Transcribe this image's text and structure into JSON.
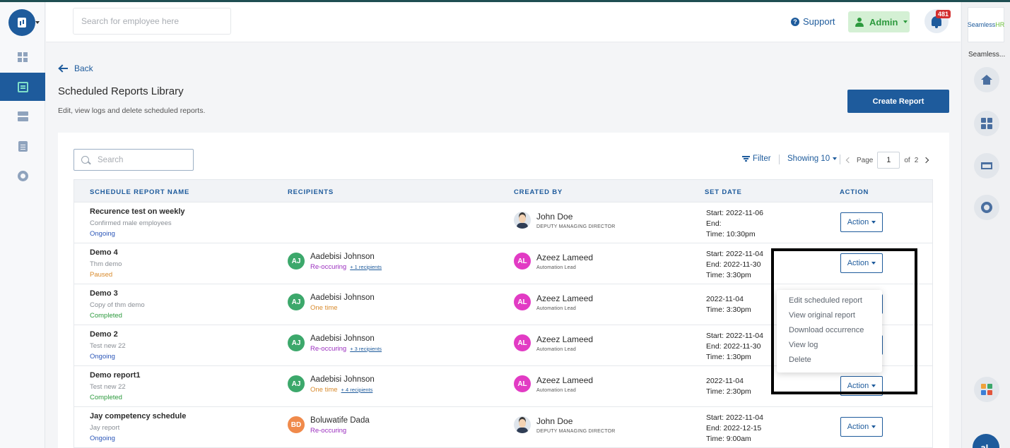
{
  "topbar": {
    "search_placeholder": "Search for employee here",
    "support_label": "Support",
    "admin_label": "Admin",
    "notification_count": "481"
  },
  "sidebar": {
    "items": [
      {
        "icon": "dashboard-icon",
        "active": false
      },
      {
        "icon": "reports-icon",
        "active": true
      },
      {
        "icon": "server-icon",
        "active": false
      },
      {
        "icon": "clipboard-icon",
        "active": false
      },
      {
        "icon": "gear-icon",
        "active": false
      }
    ]
  },
  "rightrail": {
    "logo_text": "Seamless",
    "logo_text_accent": "HR",
    "app_label": "Seamless...",
    "avatar_initials": "aL"
  },
  "page": {
    "back_label": "Back",
    "title": "Scheduled Reports Library",
    "subtitle": "Edit, view logs and delete scheduled reports.",
    "create_button": "Create Report"
  },
  "toolbar": {
    "search_placeholder": "Search",
    "filter_label": "Filter",
    "showing_label": "Showing 10",
    "page_label": "Page",
    "page_value": "1",
    "page_of": "of",
    "page_total": "2"
  },
  "table": {
    "headers": [
      "SCHEDULE REPORT NAME",
      "RECIPIENTS",
      "CREATED BY",
      "SET DATE",
      "ACTION"
    ],
    "action_label": "Action",
    "rows": [
      {
        "name": "Recurence test on weekly",
        "desc": "Confirmed male employees",
        "status": "Ongoing",
        "recipient": null,
        "creator": {
          "name": "John Doe",
          "role": "DEPUTY MANAGING DIRECTOR",
          "initials": ""
        },
        "date_lines": [
          "Start: 2022-11-06",
          "End:",
          "Time: 10:30pm"
        ]
      },
      {
        "name": "Demo 4",
        "desc": "Thm demo",
        "status": "Paused",
        "recipient": {
          "initials": "AJ",
          "name": "Aadebisi Johnson",
          "schedule": "Re-occuring",
          "more": "+ 1 recipients"
        },
        "creator": {
          "name": "Azeez Lameed",
          "role": "Automation Lead",
          "initials": "AL"
        },
        "date_lines": [
          "Start: 2022-11-04",
          "End: 2022-11-30",
          "Time: 3:30pm"
        ]
      },
      {
        "name": "Demo 3",
        "desc": "Copy of thm demo",
        "status": "Completed",
        "recipient": {
          "initials": "AJ",
          "name": "Aadebisi Johnson",
          "schedule": "One time",
          "more": ""
        },
        "creator": {
          "name": "Azeez Lameed",
          "role": "Automation Lead",
          "initials": "AL"
        },
        "date_lines": [
          "2022-11-04",
          "Time: 3:30pm",
          ""
        ]
      },
      {
        "name": "Demo 2",
        "desc": "Test new 22",
        "status": "Ongoing",
        "recipient": {
          "initials": "AJ",
          "name": "Aadebisi Johnson",
          "schedule": "Re-occuring",
          "more": "+ 3 recipients"
        },
        "creator": {
          "name": "Azeez Lameed",
          "role": "Automation Lead",
          "initials": "AL"
        },
        "date_lines": [
          "Start: 2022-11-04",
          "End: 2022-11-30",
          "Time: 1:30pm"
        ]
      },
      {
        "name": "Demo report1",
        "desc": "Test new 22",
        "status": "Completed",
        "recipient": {
          "initials": "AJ",
          "name": "Aadebisi Johnson",
          "schedule": "One time",
          "more": "+ 4 recipients"
        },
        "creator": {
          "name": "Azeez Lameed",
          "role": "Automation Lead",
          "initials": "AL"
        },
        "date_lines": [
          "2022-11-04",
          "Time: 2:30pm",
          ""
        ]
      },
      {
        "name": "Jay competency schedule",
        "desc": "Jay report",
        "status": "Ongoing",
        "recipient": {
          "initials": "BD",
          "name": "Boluwatife Dada",
          "schedule": "Re-occuring",
          "more": ""
        },
        "creator": {
          "name": "John Doe",
          "role": "DEPUTY MANAGING DIRECTOR",
          "initials": ""
        },
        "date_lines": [
          "Start: 2022-11-04",
          "End: 2022-12-15",
          "Time: 9:00am"
        ]
      }
    ]
  },
  "action_menu": {
    "items": [
      "Edit scheduled report",
      "View original report",
      "Download occurrence",
      "View log",
      "Delete"
    ]
  },
  "colors": {
    "primary": "#1e5b9c",
    "ongoing": "#2b56b8",
    "paused": "#d88a2c",
    "completed": "#2d9a3e",
    "recurring": "#9b2fbf"
  }
}
